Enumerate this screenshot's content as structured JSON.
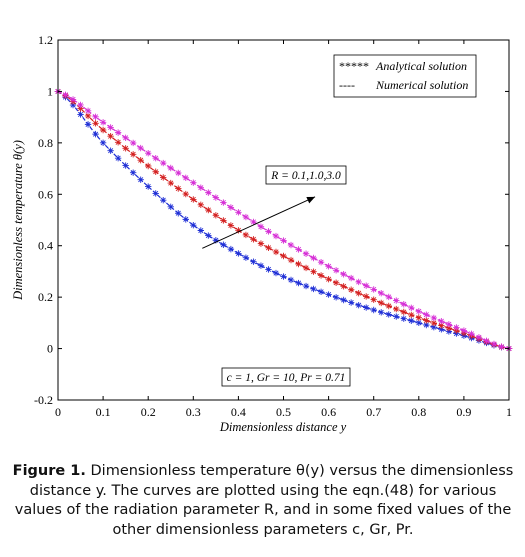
{
  "chart_data": {
    "type": "line",
    "xlabel": "Dimensionless distance y",
    "ylabel": "Dimensionless temperature θ(y)",
    "xlim": [
      0,
      1
    ],
    "ylim": [
      -0.2,
      1.2
    ],
    "xticks": [
      "0",
      "0.1",
      "0.2",
      "0.3",
      "0.4",
      "0.5",
      "0.6",
      "0.7",
      "0.8",
      "0.9",
      "1"
    ],
    "yticks": [
      "-0.2",
      "0",
      "0.2",
      "0.4",
      "0.6",
      "0.8",
      "1",
      "1.2"
    ],
    "xtick_values": [
      0,
      0.1,
      0.2,
      0.3,
      0.4,
      0.5,
      0.6,
      0.7,
      0.8,
      0.9,
      1
    ],
    "ytick_values": [
      -0.2,
      0,
      0.2,
      0.4,
      0.6,
      0.8,
      1,
      1.2
    ],
    "grid": false,
    "legend_position": "top-right",
    "legend": [
      {
        "marker": "*****",
        "label": "Analytical solution"
      },
      {
        "marker": "----",
        "label": "Numerical solution"
      }
    ],
    "annotations": {
      "arrow_label": "R = 0.1,1.0,3.0",
      "params_label": "c = 1, Gr = 10, Pr = 0.71"
    },
    "arrow": {
      "from": [
        0.32,
        0.39
      ],
      "to": [
        0.57,
        0.59
      ]
    },
    "x": [
      0,
      0.1,
      0.2,
      0.3,
      0.4,
      0.5,
      0.6,
      0.7,
      0.8,
      0.9,
      1
    ],
    "series": [
      {
        "color": "#1f2fd6",
        "values": [
          1.0,
          0.8,
          0.63,
          0.48,
          0.37,
          0.28,
          0.21,
          0.15,
          0.1,
          0.05,
          0.0
        ]
      },
      {
        "color": "#d42020",
        "values": [
          1.0,
          0.85,
          0.71,
          0.58,
          0.46,
          0.36,
          0.27,
          0.19,
          0.12,
          0.06,
          0.0
        ]
      },
      {
        "color": "#d62fd6",
        "values": [
          1.0,
          0.88,
          0.76,
          0.645,
          0.53,
          0.42,
          0.32,
          0.23,
          0.145,
          0.07,
          0.0
        ]
      }
    ]
  },
  "caption": {
    "lead": "Figure 1.",
    "text": " Dimensionless temperature θ(y) versus the dimensionless distance y. The curves are plotted using the eqn.(48) for various values of the radiation parameter R, and in some fixed values of the other dimensionless parameters c, Gr, Pr."
  }
}
